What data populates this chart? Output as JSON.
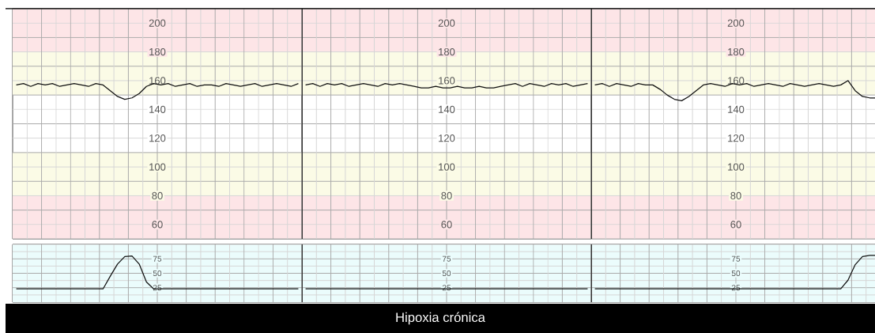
{
  "chart_data": [
    {
      "type": "line",
      "categories": [
        null,
        null,
        null,
        null,
        null,
        null,
        null,
        null,
        null,
        null,
        null,
        null,
        null,
        null,
        null,
        null,
        null,
        null,
        null,
        null,
        null,
        null,
        null,
        null,
        null,
        null,
        null,
        null,
        null,
        null,
        null,
        null,
        null,
        null,
        null,
        null,
        null,
        null,
        null,
        null
      ],
      "values": [
        157,
        158,
        156,
        158,
        157,
        158,
        156,
        157,
        158,
        157,
        156,
        158,
        157,
        153,
        149,
        147,
        148,
        151,
        156,
        158,
        157,
        158,
        156,
        157,
        158,
        156,
        157,
        157,
        156,
        158,
        157,
        156,
        157,
        158,
        156,
        157,
        158,
        157,
        156,
        158
      ],
      "color": "#111111",
      "ylim": [
        50,
        210
      ],
      "yticks": [
        60,
        80,
        100,
        120,
        140,
        160,
        180,
        200
      ],
      "tick_labels": "y",
      "grid": true,
      "bands": [
        {
          "axis": "y",
          "from": 180,
          "to": 210,
          "color": "#fde5e7"
        },
        {
          "axis": "y",
          "from": 150,
          "to": 180,
          "color": "#fbfbe6"
        },
        {
          "axis": "y",
          "from": 80,
          "to": 110,
          "color": "#fbfbe6"
        },
        {
          "axis": "y",
          "from": 50,
          "to": 80,
          "color": "#fde5e7"
        }
      ]
    },
    {
      "type": "line",
      "categories": [
        null,
        null,
        null,
        null,
        null,
        null,
        null,
        null,
        null,
        null,
        null,
        null,
        null,
        null,
        null,
        null,
        null,
        null,
        null,
        null,
        null,
        null,
        null,
        null,
        null,
        null,
        null,
        null,
        null,
        null,
        null,
        null,
        null,
        null,
        null,
        null,
        null,
        null,
        null,
        null
      ],
      "values": [
        157,
        158,
        156,
        158,
        157,
        158,
        156,
        157,
        158,
        157,
        156,
        158,
        157,
        158,
        157,
        156,
        155,
        155,
        156,
        155,
        155,
        156,
        155,
        155,
        156,
        155,
        155,
        156,
        157,
        158,
        156,
        158,
        157,
        156,
        158,
        157,
        158,
        156,
        157,
        158
      ],
      "color": "#111111",
      "ylim": [
        50,
        210
      ],
      "yticks": [
        60,
        80,
        100,
        120,
        140,
        160,
        180,
        200
      ],
      "tick_labels": "y",
      "grid": true,
      "bands": [
        {
          "axis": "y",
          "from": 180,
          "to": 210,
          "color": "#fde5e7"
        },
        {
          "axis": "y",
          "from": 150,
          "to": 180,
          "color": "#fbfbe6"
        },
        {
          "axis": "y",
          "from": 80,
          "to": 110,
          "color": "#fbfbe6"
        },
        {
          "axis": "y",
          "from": 50,
          "to": 80,
          "color": "#fde5e7"
        }
      ]
    },
    {
      "type": "line",
      "categories": [
        null,
        null,
        null,
        null,
        null,
        null,
        null,
        null,
        null,
        null,
        null,
        null,
        null,
        null,
        null,
        null,
        null,
        null,
        null,
        null,
        null,
        null,
        null,
        null,
        null,
        null,
        null,
        null,
        null,
        null,
        null,
        null,
        null,
        null,
        null,
        null,
        null,
        null,
        null,
        null
      ],
      "values": [
        157,
        158,
        156,
        158,
        157,
        156,
        158,
        157,
        157,
        154,
        150,
        147,
        146,
        149,
        153,
        157,
        158,
        157,
        156,
        158,
        157,
        158,
        156,
        157,
        158,
        157,
        156,
        158,
        157,
        156,
        157,
        158,
        157,
        156,
        157,
        160,
        153,
        149,
        148,
        148
      ],
      "color": "#111111",
      "ylim": [
        50,
        210
      ],
      "yticks": [
        60,
        80,
        100,
        120,
        140,
        160,
        180,
        200
      ],
      "tick_labels": "y",
      "grid": true,
      "bands": [
        {
          "axis": "y",
          "from": 180,
          "to": 210,
          "color": "#fde5e7"
        },
        {
          "axis": "y",
          "from": 150,
          "to": 180,
          "color": "#fbfbe6"
        },
        {
          "axis": "y",
          "from": 80,
          "to": 110,
          "color": "#fbfbe6"
        },
        {
          "axis": "y",
          "from": 50,
          "to": 80,
          "color": "#fde5e7"
        }
      ]
    },
    {
      "type": "line",
      "categories": [
        null,
        null,
        null,
        null,
        null,
        null,
        null,
        null,
        null,
        null,
        null,
        null,
        null,
        null,
        null,
        null,
        null,
        null,
        null,
        null,
        null,
        null,
        null,
        null,
        null,
        null,
        null,
        null,
        null,
        null,
        null,
        null,
        null,
        null,
        null,
        null,
        null,
        null,
        null,
        null
      ],
      "values": [
        23,
        23,
        23,
        23,
        23,
        23,
        23,
        23,
        23,
        23,
        23,
        23,
        23,
        45,
        66,
        79,
        80,
        66,
        35,
        23,
        23,
        23,
        23,
        23,
        23,
        23,
        23,
        23,
        23,
        23,
        23,
        23,
        23,
        23,
        23,
        23,
        23,
        23,
        23,
        23
      ],
      "color": "#111111",
      "ylim": [
        0,
        100
      ],
      "yticks": [
        25,
        50,
        75
      ],
      "tick_labels": "y",
      "grid": true,
      "bands": [
        {
          "axis": "y",
          "from": 0,
          "to": 100,
          "color": "#ebfcfc"
        }
      ]
    },
    {
      "type": "line",
      "title": "Hipoxia crónica",
      "categories": [
        null,
        null,
        null,
        null,
        null,
        null,
        null,
        null,
        null,
        null,
        null,
        null,
        null,
        null,
        null,
        null,
        null,
        null,
        null,
        null,
        null,
        null,
        null,
        null,
        null,
        null,
        null,
        null,
        null,
        null,
        null,
        null,
        null,
        null,
        null,
        null,
        null,
        null,
        null,
        null
      ],
      "values": [
        23,
        23,
        23,
        23,
        23,
        23,
        23,
        23,
        23,
        23,
        23,
        23,
        23,
        23,
        23,
        23,
        23,
        23,
        23,
        23,
        23,
        23,
        23,
        23,
        23,
        23,
        23,
        23,
        23,
        23,
        23,
        23,
        23,
        23,
        23,
        23,
        23,
        23,
        23,
        23
      ],
      "color": "#111111",
      "ylim": [
        0,
        100
      ],
      "yticks": [
        25,
        50,
        75
      ],
      "tick_labels": "y",
      "grid": true,
      "bands": [
        {
          "axis": "y",
          "from": 0,
          "to": 100,
          "color": "#ebfcfc"
        }
      ]
    },
    {
      "type": "line",
      "categories": [
        null,
        null,
        null,
        null,
        null,
        null,
        null,
        null,
        null,
        null,
        null,
        null,
        null,
        null,
        null,
        null,
        null,
        null,
        null,
        null,
        null,
        null,
        null,
        null,
        null,
        null,
        null,
        null,
        null,
        null,
        null,
        null,
        null,
        null,
        null,
        null,
        null,
        null,
        null,
        null
      ],
      "values": [
        23,
        23,
        23,
        23,
        23,
        23,
        23,
        23,
        23,
        23,
        23,
        23,
        23,
        23,
        23,
        23,
        23,
        23,
        23,
        23,
        23,
        23,
        23,
        23,
        23,
        23,
        23,
        23,
        23,
        23,
        23,
        23,
        23,
        23,
        23,
        38,
        65,
        79,
        81,
        81
      ],
      "color": "#111111",
      "ylim": [
        0,
        100
      ],
      "yticks": [
        25,
        50,
        75
      ],
      "tick_labels": "y",
      "grid": true,
      "bands": [
        {
          "axis": "y",
          "from": 0,
          "to": 100,
          "color": "#ebfcfc"
        }
      ]
    }
  ]
}
